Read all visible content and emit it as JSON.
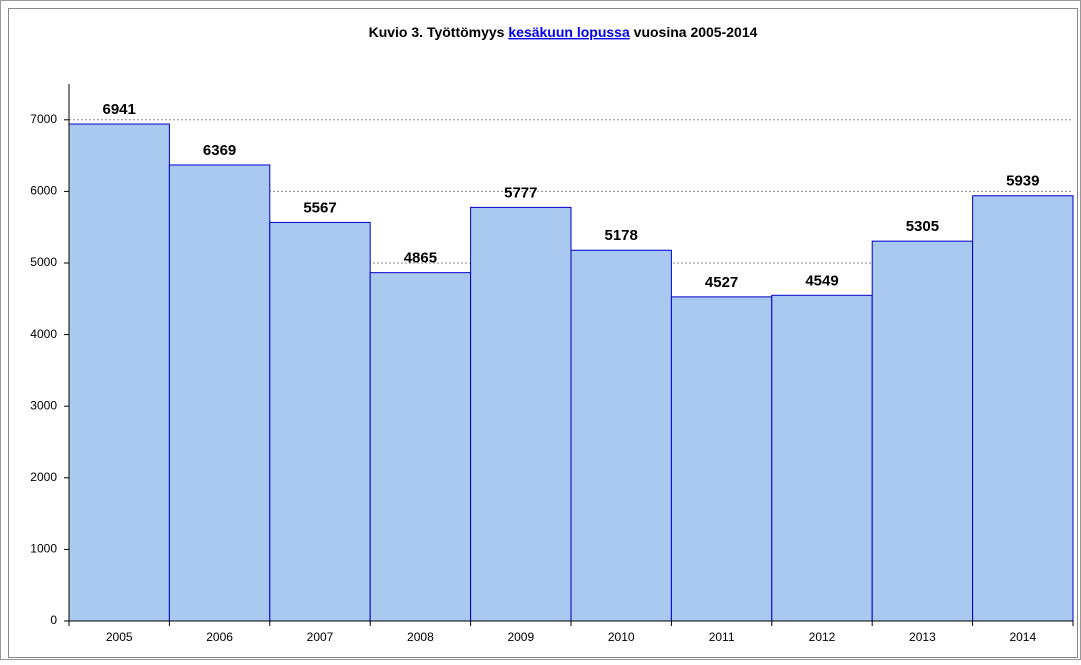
{
  "chart_data": {
    "type": "bar",
    "title": [
      "Kuvio 3. Työttömyys",
      "kesäkuun lopussa",
      "vuosina 2005-2014"
    ],
    "categories": [
      "2005",
      "2006",
      "2007",
      "2008",
      "2009",
      "2010",
      "2011",
      "2012",
      "2013",
      "2014"
    ],
    "values": [
      6941,
      6369,
      5567,
      4865,
      5777,
      5178,
      4527,
      4549,
      5305,
      5939
    ],
    "color": "#a9c9f0",
    "edge_color": "#0000cc",
    "ylim": [
      0,
      7500
    ],
    "yticks": [
      0,
      1000,
      2000,
      3000,
      4000,
      5000,
      6000,
      7000
    ],
    "grid": true
  }
}
